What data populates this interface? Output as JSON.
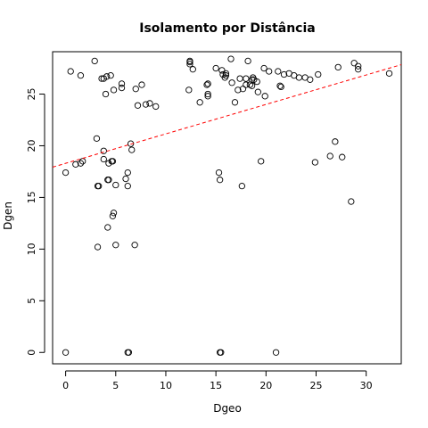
{
  "chart_data": {
    "type": "scatter",
    "title": "Isolamento por Distância",
    "xlabel": "Dgeo",
    "ylabel": "Dgen",
    "xlim": [
      -1.3,
      33.5
    ],
    "ylim": [
      -1.1,
      29.1
    ],
    "xticks": [
      0,
      5,
      10,
      15,
      20,
      25,
      30
    ],
    "yticks": [
      0,
      5,
      10,
      15,
      20,
      25
    ],
    "tick_labels_x": [
      "0",
      "5",
      "10",
      "15",
      "20",
      "25",
      "30"
    ],
    "tick_labels_y": [
      "0",
      "5",
      "10",
      "15",
      "20",
      "25"
    ],
    "grid": false,
    "marker": "open-circle",
    "point_color": "#000000",
    "regression_line": {
      "intercept": 18.3,
      "slope": 0.285,
      "color": "#ff0000",
      "style": "dashed"
    },
    "points": [
      [
        0.0,
        17.4
      ],
      [
        0.0,
        0.0
      ],
      [
        0.5,
        27.2
      ],
      [
        1.0,
        18.2
      ],
      [
        1.5,
        26.8
      ],
      [
        1.5,
        18.3
      ],
      [
        1.7,
        18.5
      ],
      [
        2.9,
        28.2
      ],
      [
        3.1,
        20.7
      ],
      [
        3.2,
        16.1
      ],
      [
        3.3,
        16.1
      ],
      [
        3.2,
        10.2
      ],
      [
        3.6,
        26.5
      ],
      [
        3.8,
        26.5
      ],
      [
        3.8,
        19.5
      ],
      [
        3.8,
        18.7
      ],
      [
        4.0,
        25.0
      ],
      [
        4.1,
        26.7
      ],
      [
        4.2,
        16.7
      ],
      [
        4.3,
        16.7
      ],
      [
        4.2,
        12.1
      ],
      [
        4.3,
        18.3
      ],
      [
        4.5,
        26.8
      ],
      [
        4.6,
        18.5
      ],
      [
        4.7,
        18.5
      ],
      [
        4.7,
        13.2
      ],
      [
        4.8,
        13.5
      ],
      [
        4.8,
        25.4
      ],
      [
        5.0,
        10.4
      ],
      [
        5.0,
        16.2
      ],
      [
        5.6,
        26.0
      ],
      [
        5.6,
        25.6
      ],
      [
        6.0,
        16.8
      ],
      [
        6.2,
        17.4
      ],
      [
        6.2,
        16.1
      ],
      [
        6.2,
        0.0
      ],
      [
        6.3,
        0.0
      ],
      [
        6.5,
        20.2
      ],
      [
        6.6,
        19.6
      ],
      [
        6.9,
        10.4
      ],
      [
        7.0,
        25.5
      ],
      [
        7.2,
        23.9
      ],
      [
        7.6,
        25.9
      ],
      [
        8.0,
        24.0
      ],
      [
        8.4,
        24.1
      ],
      [
        9.0,
        23.8
      ],
      [
        12.3,
        25.4
      ],
      [
        12.4,
        28.2
      ],
      [
        12.4,
        28.1
      ],
      [
        12.4,
        27.9
      ],
      [
        12.7,
        27.4
      ],
      [
        13.4,
        24.2
      ],
      [
        14.1,
        25.9
      ],
      [
        14.2,
        26.0
      ],
      [
        14.2,
        25.0
      ],
      [
        14.2,
        24.8
      ],
      [
        15.0,
        27.5
      ],
      [
        15.3,
        17.4
      ],
      [
        15.4,
        16.7
      ],
      [
        15.4,
        0.0
      ],
      [
        15.5,
        0.0
      ],
      [
        15.6,
        27.3
      ],
      [
        15.7,
        26.9
      ],
      [
        15.9,
        26.6
      ],
      [
        16.0,
        26.8
      ],
      [
        16.0,
        27.0
      ],
      [
        16.5,
        28.4
      ],
      [
        16.6,
        26.1
      ],
      [
        16.9,
        24.2
      ],
      [
        17.2,
        25.4
      ],
      [
        17.4,
        26.5
      ],
      [
        17.6,
        16.1
      ],
      [
        17.7,
        25.5
      ],
      [
        18.0,
        26.5
      ],
      [
        18.0,
        25.9
      ],
      [
        18.2,
        28.2
      ],
      [
        18.4,
        25.9
      ],
      [
        18.6,
        26.4
      ],
      [
        18.6,
        25.8
      ],
      [
        18.7,
        26.6
      ],
      [
        18.8,
        26.4
      ],
      [
        19.1,
        26.2
      ],
      [
        19.2,
        25.2
      ],
      [
        19.5,
        18.5
      ],
      [
        19.8,
        27.5
      ],
      [
        19.9,
        24.8
      ],
      [
        20.3,
        27.2
      ],
      [
        21.0,
        0.0
      ],
      [
        21.2,
        27.2
      ],
      [
        21.4,
        25.8
      ],
      [
        21.5,
        25.7
      ],
      [
        21.8,
        26.9
      ],
      [
        22.3,
        27.0
      ],
      [
        22.8,
        26.8
      ],
      [
        23.3,
        26.6
      ],
      [
        23.9,
        26.6
      ],
      [
        24.4,
        26.4
      ],
      [
        24.9,
        18.4
      ],
      [
        25.2,
        26.9
      ],
      [
        26.4,
        19.0
      ],
      [
        26.9,
        20.4
      ],
      [
        27.2,
        27.6
      ],
      [
        27.6,
        18.9
      ],
      [
        28.5,
        14.6
      ],
      [
        28.8,
        28.0
      ],
      [
        29.2,
        27.7
      ],
      [
        29.2,
        27.4
      ],
      [
        32.3,
        27.0
      ]
    ]
  }
}
